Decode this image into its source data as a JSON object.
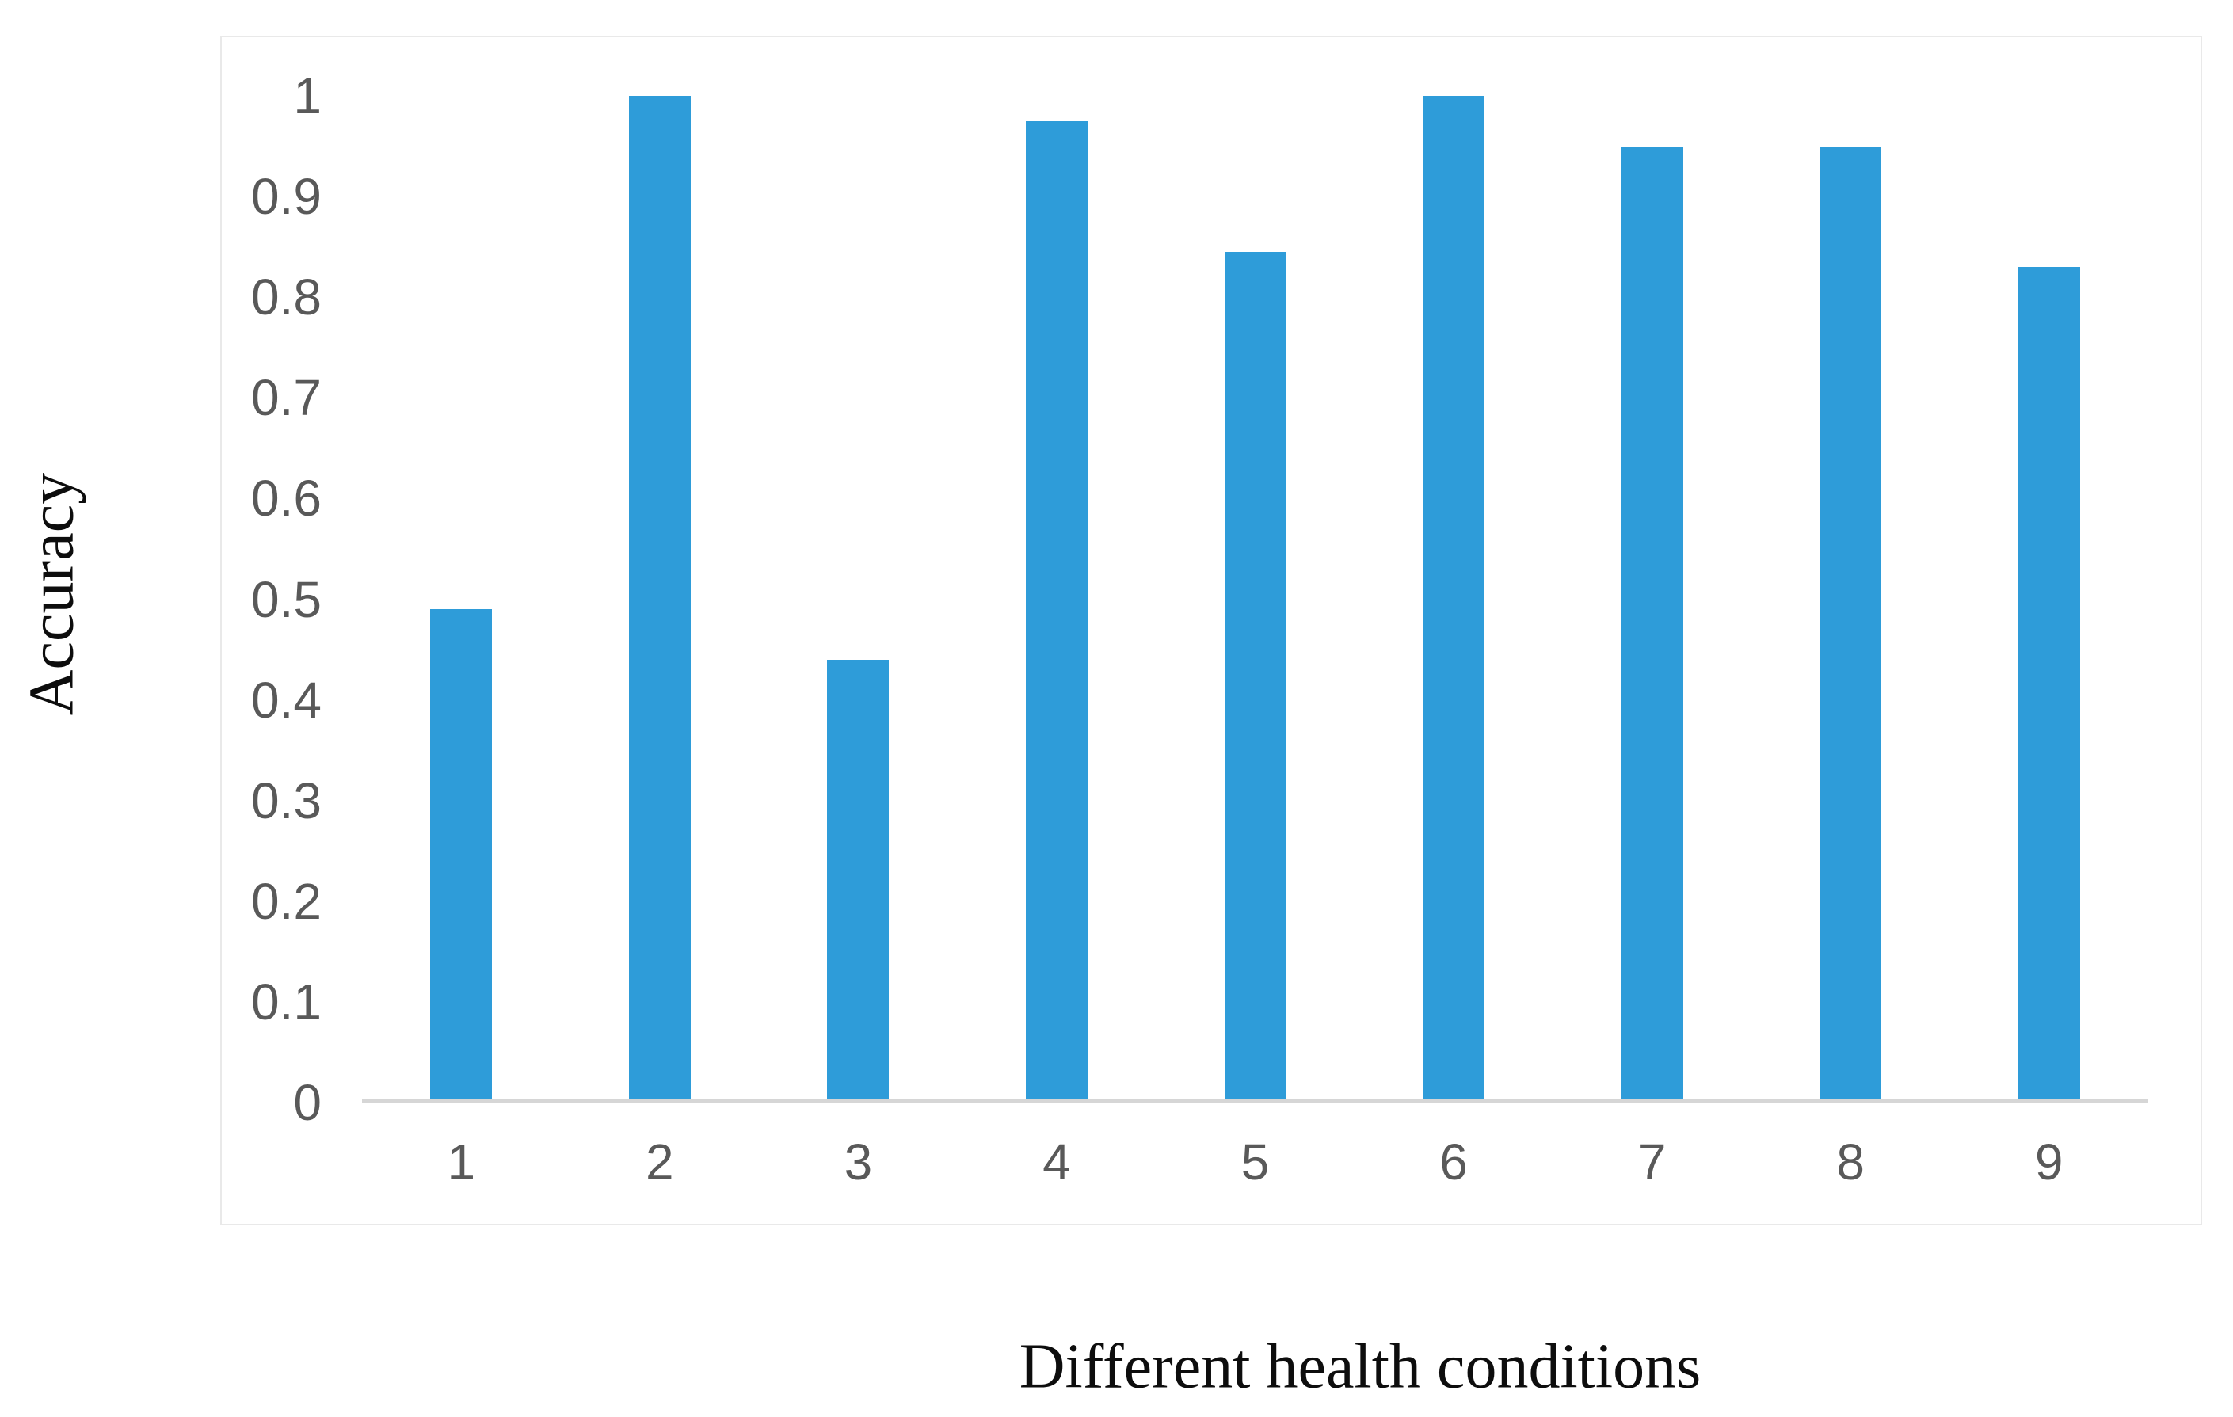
{
  "chart_data": {
    "type": "bar",
    "title": "",
    "xlabel": "Different health conditions",
    "ylabel": "Accuracy",
    "categories": [
      "1",
      "2",
      "3",
      "4",
      "5",
      "6",
      "7",
      "8",
      "9"
    ],
    "values": [
      0.49,
      1.0,
      0.44,
      0.975,
      0.845,
      1.0,
      0.95,
      0.95,
      0.83
    ],
    "series_name": "Accuracy",
    "y_ticks": [
      "1",
      "0.9",
      "0.8",
      "0.7",
      "0.6",
      "0.5",
      "0.4",
      "0.3",
      "0.2",
      "0.1",
      "0"
    ],
    "y_tick_values": [
      1,
      0.9,
      0.8,
      0.7,
      0.6,
      0.5,
      0.4,
      0.3,
      0.2,
      0.1,
      0
    ],
    "ylim": [
      0,
      1
    ],
    "grid": false,
    "legend_position": "none",
    "bar_color": "#2E9CD9",
    "axis_line_color": "#D6D6D6",
    "tick_label_color": "#595959",
    "frame_border_color": "#E9E9E9",
    "title_text_color": "#0D0D0D"
  }
}
